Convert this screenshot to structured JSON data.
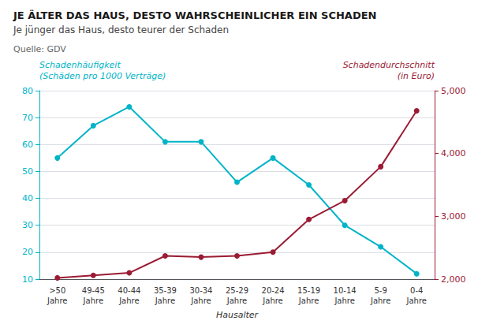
{
  "chart_data": {
    "type": "line",
    "title": "JE ÄLTER DAS HAUS, DESTO WAHRSCHEINLICHER EIN SCHADEN",
    "subtitle": "Je jünger das Haus, desto teurer der Schaden",
    "source": "Quelle: GDV",
    "xlabel": "Hausalter",
    "ylabel": "Schadenhäufigkeit\n(Schäden pro 1000 Verträge)",
    "y2label": "Schadendurchschnitt\n(in Euro)",
    "categories": [
      ">50\nJahre",
      "49-45\nJahre",
      "40-44\nJahre",
      "35-39\nJahre",
      "30-34\nJahre",
      "25-29\nJahre",
      "20-24\nJahre",
      "15-19\nJahre",
      "10-14\nJahre",
      "5-9\nJahre",
      "0-4\nJahre"
    ],
    "series": [
      {
        "color": "#00B4C8",
        "marker": "circle",
        "line_style": "solid",
        "values": [
          55,
          67,
          74,
          61,
          61,
          46,
          55,
          45,
          30,
          22,
          12
        ]
      },
      {
        "color": "#9B1B34",
        "marker": "circle",
        "line_style": "solid",
        "axis": "y2",
        "values": [
          2020,
          2060,
          2100,
          2370,
          2350,
          2370,
          2430,
          2950,
          3250,
          3790,
          4680
        ]
      }
    ],
    "ylim": [
      10,
      80
    ],
    "yticks": [
      10,
      20,
      30,
      40,
      50,
      60,
      70,
      80
    ],
    "y2lim": [
      2000,
      5000
    ],
    "y2ticks": [
      2000,
      3000,
      4000,
      5000
    ],
    "grid": true
  }
}
